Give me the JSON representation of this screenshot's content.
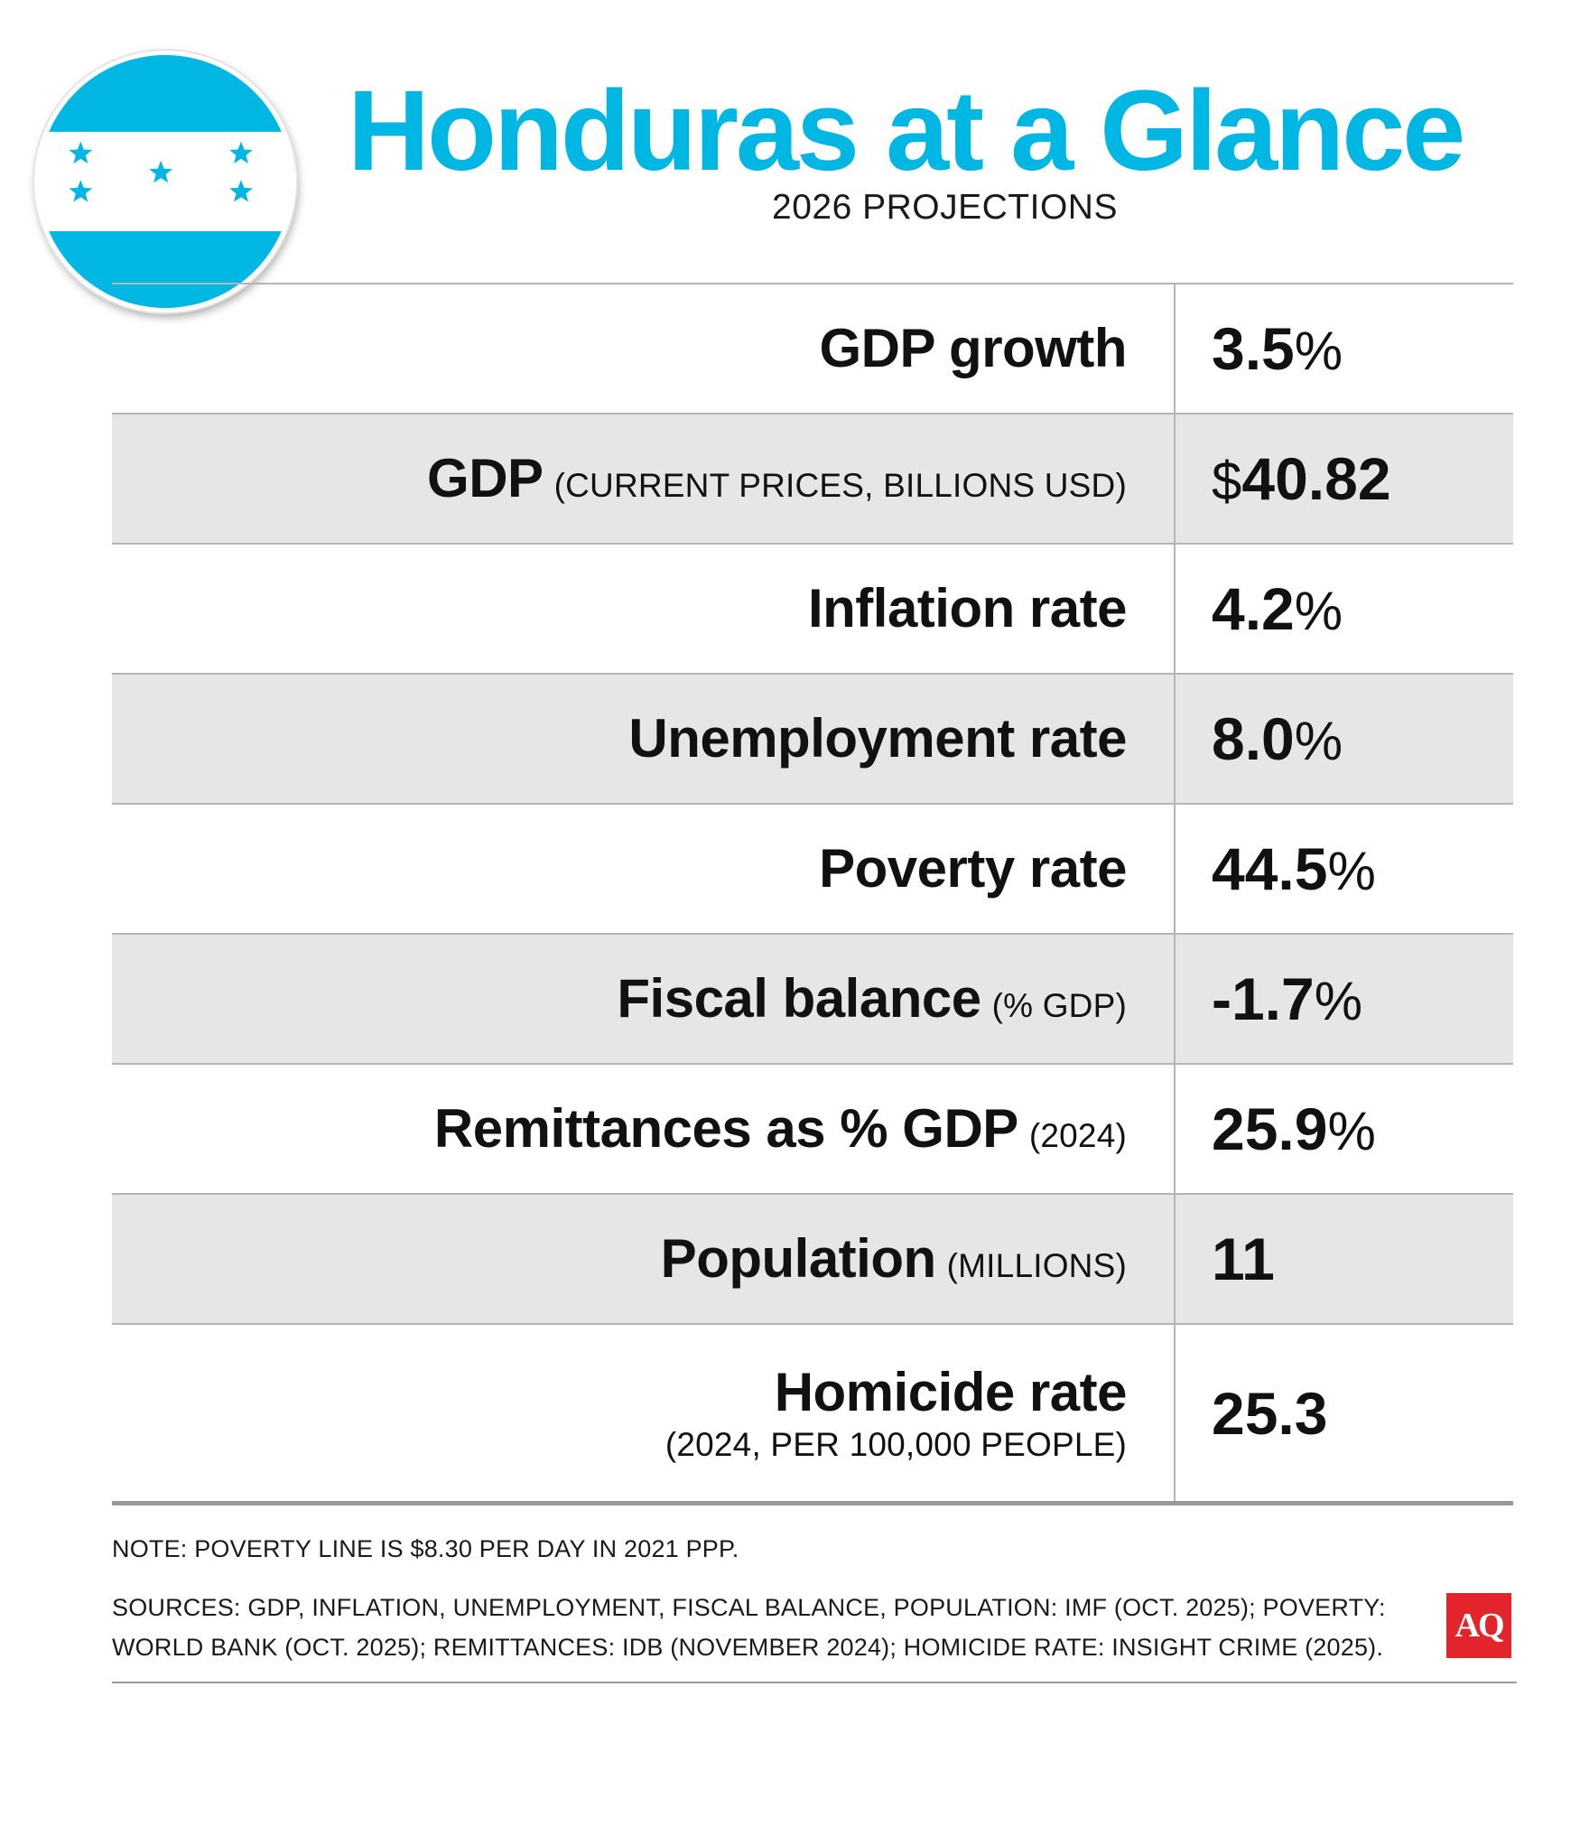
{
  "header": {
    "title": "Honduras at a Glance",
    "subtitle": "2026 PROJECTIONS"
  },
  "colors": {
    "brand_blue": "#00B7E3",
    "row_shade": "#E6E6E6",
    "logo_red": "#E2252C"
  },
  "flag": {
    "icon": "honduras-flag-icon"
  },
  "rows": [
    {
      "label": "GDP growth",
      "value": "3.5",
      "unit": "%"
    },
    {
      "label": "GDP",
      "note": "(CURRENT PRICES, BILLIONS USD)",
      "prefix": "$",
      "value": "40.82"
    },
    {
      "label": "Inflation rate",
      "value": "4.2",
      "unit": "%"
    },
    {
      "label": "Unemployment rate",
      "value": "8.0",
      "unit": "%"
    },
    {
      "label": "Poverty rate",
      "value": "44.5",
      "unit": "%"
    },
    {
      "label": "Fiscal balance",
      "note": "(% GDP)",
      "value": "-1.7",
      "unit": "%"
    },
    {
      "label": "Remittances as % GDP",
      "note": "(2024)",
      "value": "25.9",
      "unit": "%"
    },
    {
      "label": "Population",
      "note": "(MILLIONS)",
      "value": "11"
    },
    {
      "label": "Homicide rate",
      "note": "(2024, PER 100,000 PEOPLE)",
      "value": "25.3"
    }
  ],
  "footer": {
    "note": "NOTE: POVERTY LINE IS $8.30 PER DAY IN 2021 PPP.",
    "sources_line1": "SOURCES: GDP, INFLATION, UNEMPLOYMENT, FISCAL BALANCE, POPULATION: IMF (OCT. 2025); POVERTY:",
    "sources_line2": "WORLD BANK (OCT. 2025); REMITTANCES: IDB (NOVEMBER 2024); HOMICIDE RATE: INSIGHT CRIME (2025).",
    "logo_text": "AQ"
  }
}
